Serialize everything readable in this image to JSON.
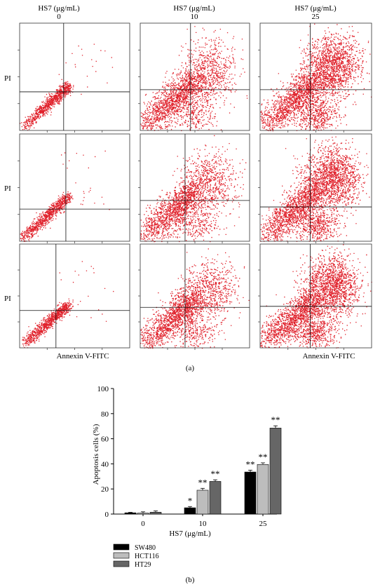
{
  "panel_a": {
    "label": "(a)",
    "column_headers": [
      {
        "title": "HS7 (μg/mL)",
        "dose": "0"
      },
      {
        "title": "HS7 (μg/mL)",
        "dose": "10"
      },
      {
        "title": "HS7 (μg/mL)",
        "dose": "25"
      }
    ],
    "y_axis_label": "PI",
    "x_axis_label": "Annexin V-FITC",
    "point_color": "#e0202a"
  },
  "chart_data": {
    "type": "bar",
    "panel_label": "(b)",
    "categories": [
      "0",
      "10",
      "25"
    ],
    "xlabel": "HS7 (μg/mL)",
    "ylabel": "Apoptosis cells (%)",
    "ylim": [
      0,
      100
    ],
    "yticks": [
      "0",
      "20",
      "40",
      "60",
      "80",
      "100"
    ],
    "series": [
      {
        "name": "SW480",
        "color": "#000000",
        "values": [
          1.0,
          5.0,
          33.5
        ],
        "errors": [
          0.4,
          1.0,
          1.5
        ],
        "significance": [
          "",
          "*",
          "**"
        ]
      },
      {
        "name": "HCT116",
        "color": "#bdbdbd",
        "values": [
          0.8,
          19.0,
          39.5
        ],
        "errors": [
          1.0,
          1.5,
          1.3
        ],
        "significance": [
          "",
          "**",
          "**"
        ]
      },
      {
        "name": "HT29",
        "color": "#666666",
        "values": [
          1.5,
          26.0,
          68.5
        ],
        "errors": [
          1.0,
          1.3,
          1.8
        ],
        "significance": [
          "",
          "**",
          "**"
        ]
      }
    ],
    "legend_position": "bottom-left"
  }
}
